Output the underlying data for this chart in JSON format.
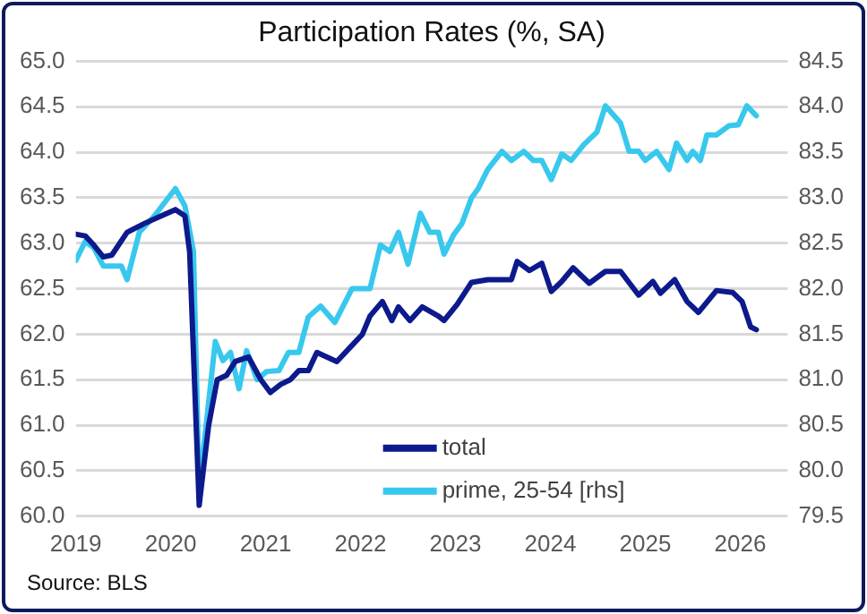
{
  "chart_data": {
    "type": "line",
    "title": "Participation Rates (%, SA)",
    "annotations": [
      "Source: BLS"
    ],
    "xlim": [
      2019,
      2026.5
    ],
    "xticks": [
      2019,
      2020,
      2021,
      2022,
      2023,
      2024,
      2025,
      2026
    ],
    "ylim": [
      60,
      65
    ],
    "yticks": [
      {
        "value": 60,
        "label": "60.0"
      },
      {
        "value": 60.5,
        "label": "60.5"
      },
      {
        "value": 61,
        "label": "61.0"
      },
      {
        "value": 61.5,
        "label": "61.5"
      },
      {
        "value": 62,
        "label": "62.0"
      },
      {
        "value": 62.5,
        "label": "62.5"
      },
      {
        "value": 63,
        "label": "63.0"
      },
      {
        "value": 63.5,
        "label": "63.5"
      },
      {
        "value": 64,
        "label": "64.0"
      },
      {
        "value": 64.5,
        "label": "64.5"
      },
      {
        "value": 65,
        "label": "65.0"
      }
    ],
    "y2lim": [
      79.5,
      84.5
    ],
    "y2ticks": [
      79.5,
      {
        "value": 80,
        "label": "80.0"
      },
      80.5,
      {
        "value": 81,
        "label": "81.0"
      },
      81.5,
      {
        "value": 82,
        "label": "82.0"
      },
      82.5,
      {
        "value": 83,
        "label": "83.0"
      },
      83.5,
      {
        "value": 84,
        "label": "84.0"
      },
      84.5
    ],
    "grid": "y",
    "legend": "bottom right",
    "marker": "none",
    "line_style": "solid",
    "series": [
      {
        "name": "total",
        "color": "#0d1a8c",
        "x": [
          2019.0,
          2019.1,
          2019.19,
          2019.29,
          2019.38,
          2019.54,
          2019.73,
          2019.9,
          2020.05,
          2020.15,
          2020.2,
          2020.3,
          2020.4,
          2020.49,
          2020.59,
          2020.68,
          2020.82,
          2020.95,
          2021.05,
          2021.16,
          2021.26,
          2021.35,
          2021.45,
          2021.54,
          2021.75,
          2021.93,
          2022.02,
          2022.1,
          2022.23,
          2022.33,
          2022.4,
          2022.52,
          2022.65,
          2022.82,
          2022.88,
          2023.02,
          2023.17,
          2023.34,
          2023.44,
          2023.59,
          2023.65,
          2023.78,
          2023.91,
          2024.01,
          2024.12,
          2024.24,
          2024.41,
          2024.58,
          2024.74,
          2024.93,
          2025.08,
          2025.16,
          2025.31,
          2025.44,
          2025.56,
          2025.75,
          2025.92,
          2026.02,
          2026.11,
          2026.17
        ],
        "values": [
          63.1,
          63.08,
          62.98,
          62.85,
          62.87,
          63.12,
          63.22,
          63.3,
          63.37,
          63.3,
          62.9,
          60.12,
          61.0,
          61.5,
          61.55,
          61.7,
          61.75,
          61.5,
          61.36,
          61.45,
          61.5,
          61.6,
          61.6,
          61.8,
          61.7,
          61.9,
          62.0,
          62.2,
          62.36,
          62.15,
          62.3,
          62.15,
          62.3,
          62.2,
          62.15,
          62.33,
          62.57,
          62.6,
          62.6,
          62.6,
          62.8,
          62.7,
          62.78,
          62.47,
          62.58,
          62.73,
          62.56,
          62.69,
          62.69,
          62.43,
          62.58,
          62.45,
          62.6,
          62.36,
          62.24,
          62.48,
          62.46,
          62.36,
          62.08,
          62.05
        ]
      },
      {
        "name": "prime, 25-54 [rhs]",
        "color": "#38c8ee",
        "axis": "y2",
        "x": [
          2019.0,
          2019.1,
          2019.19,
          2019.29,
          2019.48,
          2019.54,
          2019.67,
          2019.82,
          2020.05,
          2020.15,
          2020.24,
          2020.3,
          2020.47,
          2020.55,
          2020.63,
          2020.72,
          2020.8,
          2020.91,
          2021.01,
          2021.14,
          2021.24,
          2021.35,
          2021.45,
          2021.58,
          2021.73,
          2021.91,
          2022.1,
          2022.21,
          2022.31,
          2022.4,
          2022.5,
          2022.63,
          2022.73,
          2022.82,
          2022.88,
          2022.98,
          2023.07,
          2023.17,
          2023.24,
          2023.34,
          2023.49,
          2023.59,
          2023.72,
          2023.82,
          2023.91,
          2024.01,
          2024.12,
          2024.22,
          2024.35,
          2024.49,
          2024.58,
          2024.74,
          2024.83,
          2024.93,
          2025.0,
          2025.12,
          2025.25,
          2025.33,
          2025.44,
          2025.5,
          2025.58,
          2025.65,
          2025.75,
          2025.88,
          2025.98,
          2026.07,
          2026.17
        ],
        "values": [
          82.31,
          82.52,
          82.45,
          82.25,
          82.25,
          82.1,
          82.62,
          82.79,
          83.1,
          82.91,
          82.41,
          79.8,
          81.42,
          81.21,
          81.3,
          80.9,
          81.32,
          81.0,
          81.09,
          81.1,
          81.3,
          81.3,
          81.69,
          81.81,
          81.63,
          82.0,
          82.0,
          82.48,
          82.41,
          82.62,
          82.27,
          82.83,
          82.62,
          82.62,
          82.38,
          82.59,
          82.72,
          83.0,
          83.1,
          83.31,
          83.51,
          83.41,
          83.51,
          83.41,
          83.41,
          83.2,
          83.48,
          83.41,
          83.58,
          83.72,
          84.01,
          83.82,
          83.51,
          83.51,
          83.41,
          83.51,
          83.31,
          83.6,
          83.41,
          83.51,
          83.41,
          83.69,
          83.69,
          83.79,
          83.8,
          84.01,
          83.9
        ]
      }
    ]
  }
}
